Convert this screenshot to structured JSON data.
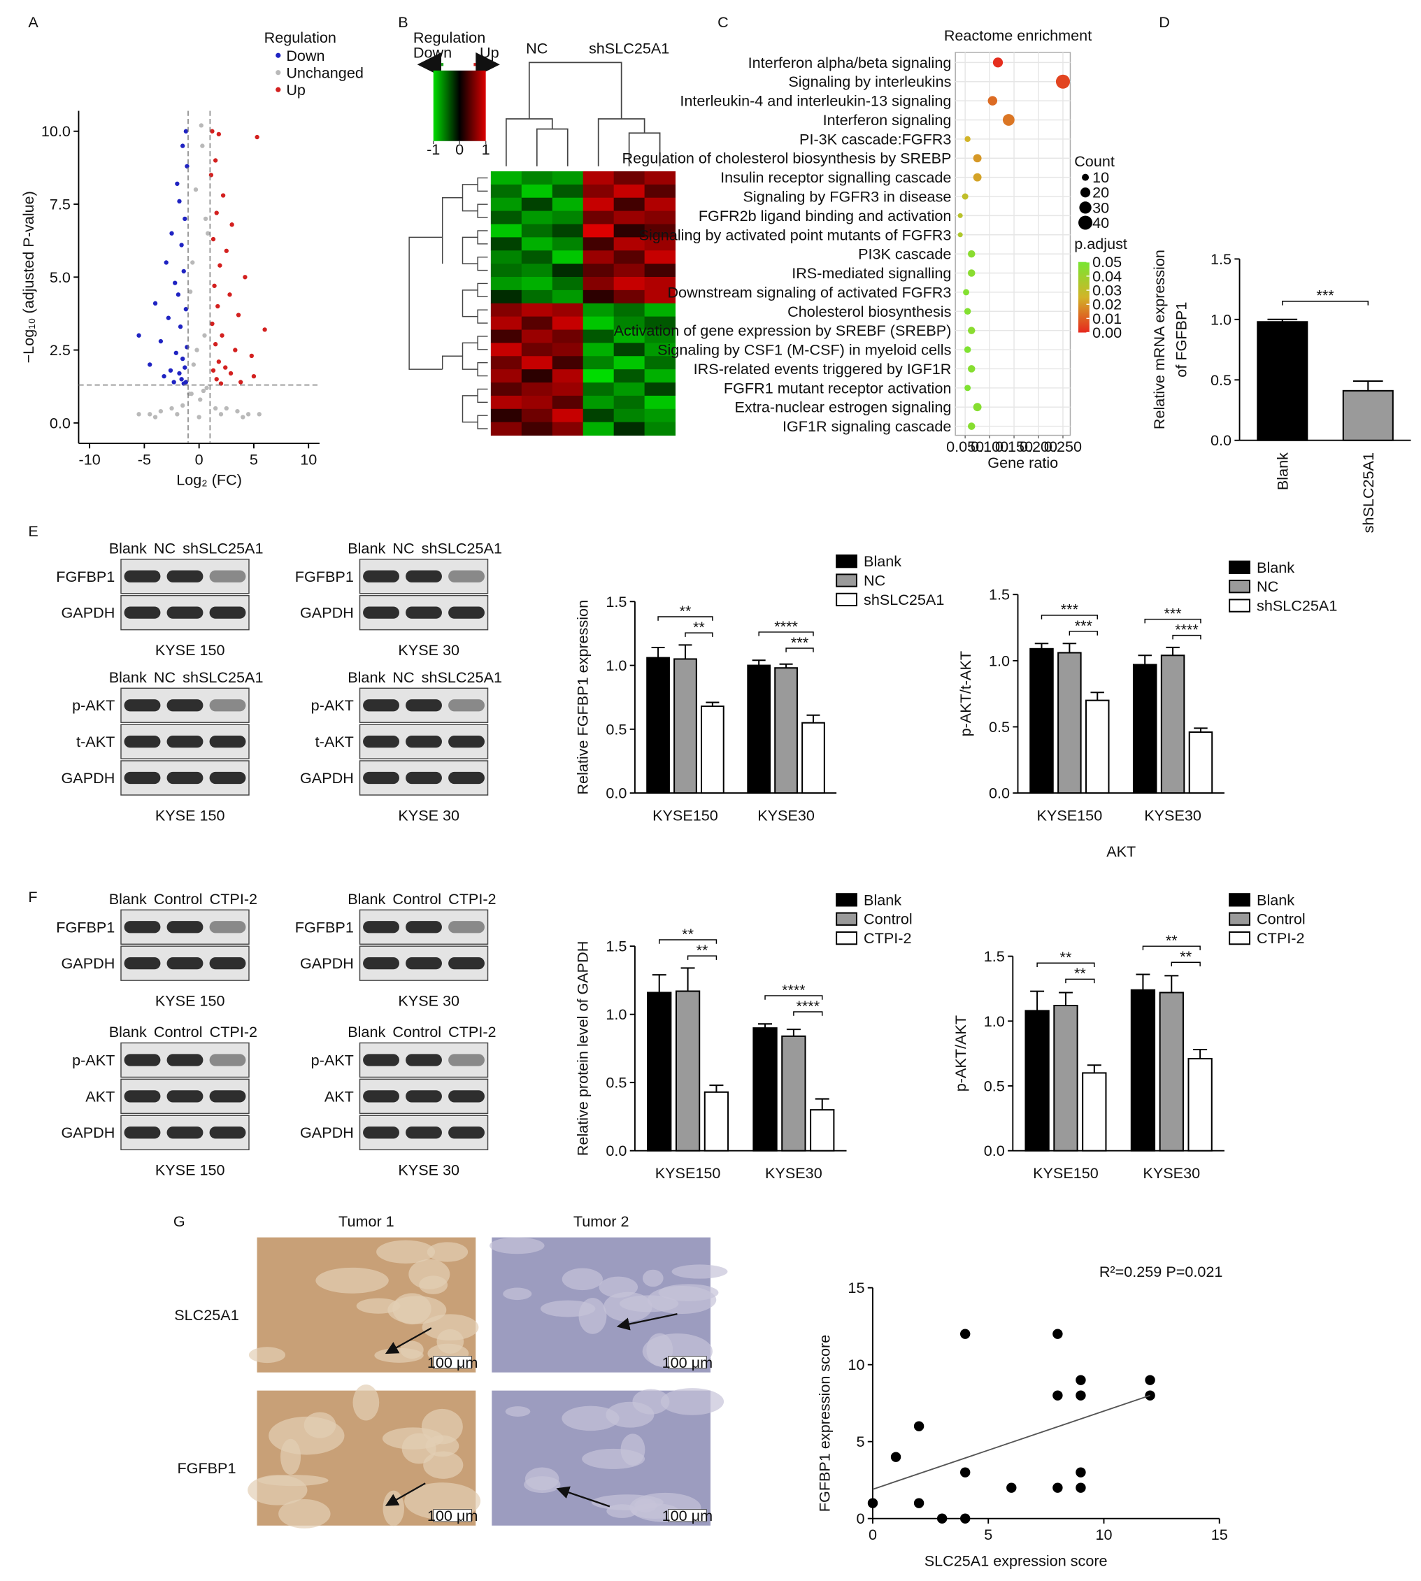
{
  "panel_labels": [
    "A",
    "B",
    "C",
    "D",
    "E",
    "F",
    "G"
  ],
  "chart_data": [
    {
      "type": "volcano",
      "x_label": "Log₂ (FC)",
      "y_label": "−Log₁₀ (adjusted P-value)",
      "legend_title": "Regulation",
      "series": [
        {
          "name": "Down",
          "color": "#1f23c2",
          "x": [
            -1.2,
            -1.5,
            -1.1,
            -2.0,
            -1.8,
            -1.3,
            -2.5,
            -1.6,
            -3.0,
            -1.4,
            -2.2,
            -1.9,
            -4.0,
            -1.2,
            -2.8,
            -1.7,
            -5.5,
            -3.5,
            -1.1,
            -2.1,
            -1.5,
            -4.5,
            -1.3,
            -2.6,
            -1.8,
            -3.2,
            -1.6,
            -1.2,
            -2.3,
            -1.4
          ],
          "y": [
            10.0,
            9.5,
            8.8,
            8.2,
            7.6,
            7.0,
            6.5,
            6.1,
            5.5,
            5.2,
            4.8,
            4.4,
            4.1,
            3.9,
            3.6,
            3.3,
            3.0,
            2.8,
            2.6,
            2.4,
            2.2,
            2.0,
            1.9,
            1.8,
            1.7,
            1.6,
            1.5,
            1.4,
            1.4,
            1.35
          ]
        },
        {
          "name": "Unchanged",
          "color": "#b9b9b9",
          "x": [
            -5.5,
            -4.5,
            -3.5,
            -2.5,
            -1.5,
            -0.5,
            0,
            0.5,
            1.5,
            2.5,
            3.5,
            4.5,
            5.5,
            -0.8,
            0.8,
            -0.3,
            0.3,
            -0.6,
            0.6,
            -0.9,
            0.2,
            -0.2,
            0.4,
            0.7,
            -0.7,
            -4,
            4,
            -2,
            2,
            0.1
          ],
          "y": [
            0.3,
            0.3,
            0.4,
            0.5,
            0.6,
            2.0,
            0.2,
            3.0,
            0.5,
            0.5,
            0.4,
            0.3,
            0.3,
            4.5,
            6.5,
            8.0,
            9.5,
            5.5,
            7.0,
            1.0,
            10.2,
            2.5,
            1.1,
            1.2,
            1.0,
            0.2,
            0.2,
            0.3,
            0.3,
            0.8
          ]
        },
        {
          "name": "Up",
          "color": "#d3201f",
          "x": [
            1.2,
            1.8,
            1.5,
            5.3,
            1.1,
            2.2,
            1.6,
            3.0,
            1.3,
            2.5,
            1.9,
            4.2,
            1.4,
            2.8,
            1.7,
            3.6,
            1.2,
            6.0,
            2.1,
            1.5,
            3.3,
            4.8,
            1.8,
            2.4,
            1.3,
            2.9,
            5.0,
            1.6,
            3.8,
            2.0
          ],
          "y": [
            10.0,
            9.9,
            9.0,
            9.8,
            8.5,
            7.8,
            7.2,
            6.8,
            6.3,
            5.9,
            5.4,
            5.0,
            4.7,
            4.4,
            4.0,
            3.7,
            3.4,
            3.2,
            3.0,
            2.7,
            2.5,
            2.3,
            2.1,
            1.9,
            1.8,
            1.7,
            1.6,
            1.5,
            1.4,
            1.35
          ]
        }
      ],
      "xlim": [
        -11,
        11
      ],
      "xticks": [
        -10,
        -5,
        0,
        5,
        10
      ],
      "ylim": [
        -0.7,
        10.7
      ],
      "yticks": [
        {
          "value": 0,
          "label": "0.0"
        },
        2.5,
        {
          "value": 5,
          "label": "5.0"
        },
        7.5,
        {
          "value": 10,
          "label": "10.0"
        }
      ],
      "cutoff_x": [
        -1,
        1
      ],
      "cutoff_y": 1.3
    },
    {
      "type": "heatmap",
      "group_labels": [
        "NC",
        "shSLC25A1"
      ],
      "legend_title": "Regulation",
      "legend_low": "Down",
      "legend_high": "Up",
      "color_lim": [
        -1,
        1
      ],
      "color_ticks": [
        -1,
        0,
        1
      ],
      "values": [
        [
          -0.8,
          -0.6,
          -0.7,
          0.8,
          0.5,
          0.7
        ],
        [
          -0.5,
          -0.9,
          -0.4,
          0.6,
          0.9,
          0.4
        ],
        [
          -0.7,
          -0.3,
          -0.8,
          0.9,
          0.3,
          0.8
        ],
        [
          -0.4,
          -0.7,
          -0.6,
          0.5,
          0.7,
          0.6
        ],
        [
          -0.9,
          -0.5,
          -0.3,
          1.0,
          0.2,
          0.4
        ],
        [
          -0.3,
          -0.8,
          -0.6,
          0.3,
          0.8,
          0.7
        ],
        [
          -0.6,
          -0.4,
          -0.9,
          0.7,
          0.4,
          0.9
        ],
        [
          -0.5,
          -0.6,
          -0.2,
          0.4,
          0.6,
          0.3
        ],
        [
          -0.7,
          -0.8,
          -0.5,
          0.6,
          0.9,
          0.8
        ],
        [
          -0.2,
          -0.5,
          -0.7,
          0.2,
          0.5,
          0.8
        ],
        [
          0.6,
          0.8,
          0.7,
          -0.7,
          -0.5,
          -0.8
        ],
        [
          0.8,
          0.4,
          0.9,
          -0.9,
          -0.6,
          -0.4
        ],
        [
          0.3,
          0.7,
          0.5,
          -0.4,
          -0.8,
          -0.6
        ],
        [
          0.9,
          0.5,
          0.6,
          -0.8,
          -0.3,
          -0.7
        ],
        [
          0.5,
          0.9,
          0.3,
          -0.6,
          -0.9,
          -0.5
        ],
        [
          0.7,
          0.2,
          0.8,
          -1.0,
          -0.4,
          -0.8
        ],
        [
          0.4,
          0.6,
          0.7,
          -0.5,
          -0.7,
          -0.3
        ],
        [
          0.8,
          0.7,
          0.4,
          -0.7,
          -0.5,
          -0.9
        ],
        [
          0.2,
          0.5,
          0.9,
          -0.3,
          -0.6,
          -0.7
        ],
        [
          0.6,
          0.3,
          0.6,
          -0.8,
          -0.2,
          -0.6
        ]
      ]
    },
    {
      "type": "dot",
      "title": "Reactome enrichment",
      "x_label": "Gene ratio",
      "terms": [
        "Interferon alpha/beta signaling",
        "Signaling by interleukins",
        "Interleukin-4 and interleukin-13 signaling",
        "Interferon signaling",
        "PI-3K cascade:FGFR3",
        "Regulation of cholesterol biosynthesis by SREBP",
        "Insulin receptor signalling cascade",
        "Signaling by FGFR3 in disease",
        "FGFR2b ligand binding and activation",
        "Signaling by activated point mutants of FGFR3",
        "PI3K cascade",
        "IRS-mediated signalling",
        "Downstream signaling of activated FGFR3",
        "Cholesterol biosynthesis",
        "Activation of gene expression by SREBF (SREBP)",
        "Signaling by CSF1 (M-CSF) in myeloid cells",
        "IRS-related events triggered by IGF1R",
        "FGFR1 mutant receptor activation",
        "Extra-nuclear estrogen signaling",
        "IGF1R signaling cascade"
      ],
      "gene_ratio": [
        0.117,
        0.25,
        0.106,
        0.139,
        0.055,
        0.075,
        0.075,
        0.05,
        0.04,
        0.04,
        0.063,
        0.063,
        0.052,
        0.055,
        0.063,
        0.055,
        0.063,
        0.055,
        0.075,
        0.063
      ],
      "counts": [
        20,
        40,
        18,
        28,
        7,
        14,
        14,
        8,
        5,
        5,
        11,
        11,
        8,
        9,
        11,
        9,
        11,
        8,
        14,
        11
      ],
      "p_adjust": [
        0.001,
        0.005,
        0.012,
        0.014,
        0.025,
        0.02,
        0.022,
        0.03,
        0.032,
        0.035,
        0.045,
        0.045,
        0.047,
        0.047,
        0.045,
        0.048,
        0.046,
        0.048,
        0.046,
        0.046
      ],
      "xlim": [
        0.03,
        0.265
      ],
      "xticks": [
        {
          "value": 0.05,
          "label": "0.050"
        },
        {
          "value": 0.1,
          "label": "0.100"
        },
        {
          "value": 0.15,
          "label": "0.150"
        },
        {
          "value": 0.2,
          "label": "0.200"
        },
        {
          "value": 0.25,
          "label": "0.250"
        }
      ],
      "size_title": "Count",
      "size_ticks": [
        10,
        20,
        30,
        40
      ],
      "color_title": "p.adjust",
      "color_lim": [
        0,
        0.05
      ],
      "color_ticks": [
        0.05,
        0.04,
        0.03,
        0.02,
        0.01,
        {
          "value": 0,
          "label": "0.00"
        }
      ]
    },
    {
      "type": "bar",
      "y_label": [
        "Relative mRNA expression",
        "of FGFBP1"
      ],
      "categories": [
        "Blank",
        "shSLC25A1"
      ],
      "values": [
        0.98,
        0.41
      ],
      "errors": [
        0.02,
        0.08
      ],
      "colors": [
        "#000000",
        "#9a9a9a"
      ],
      "significance": "***",
      "ylim": [
        0,
        1.5
      ],
      "yticks": [
        {
          "value": 0,
          "label": "0.0"
        },
        0.5,
        {
          "value": 1,
          "label": "1.0"
        },
        1.5
      ]
    },
    {
      "type": "bar",
      "y_label": "Relative FGFBP1 expression",
      "categories": [
        "KYSE150",
        "KYSE30"
      ],
      "series": [
        {
          "name": "Blank",
          "color": "#000000",
          "values": [
            1.06,
            1.0
          ],
          "errors": [
            0.08,
            0.04
          ]
        },
        {
          "name": "NC",
          "color": "#9a9a9a",
          "values": [
            1.05,
            0.98
          ],
          "errors": [
            0.11,
            0.03
          ]
        },
        {
          "name": "shSLC25A1",
          "color": "#ffffff",
          "values": [
            0.68,
            0.55
          ],
          "errors": [
            0.03,
            0.06
          ]
        }
      ],
      "significance": [
        [
          "**",
          "**"
        ],
        [
          "****",
          "***"
        ]
      ],
      "ylim": [
        0,
        1.5
      ],
      "yticks": [
        {
          "value": 0,
          "label": "0.0"
        },
        0.5,
        {
          "value": 1,
          "label": "1.0"
        },
        1.5
      ]
    },
    {
      "type": "bar",
      "y_label": "p-AKT/t-AKT",
      "x_label": "AKT",
      "categories": [
        "KYSE150",
        "KYSE30"
      ],
      "series": [
        {
          "name": "Blank",
          "color": "#000000",
          "values": [
            1.09,
            0.97
          ],
          "errors": [
            0.04,
            0.07
          ]
        },
        {
          "name": "NC",
          "color": "#9a9a9a",
          "values": [
            1.06,
            1.04
          ],
          "errors": [
            0.07,
            0.06
          ]
        },
        {
          "name": "shSLC25A1",
          "color": "#ffffff",
          "values": [
            0.7,
            0.46
          ],
          "errors": [
            0.06,
            0.03
          ]
        }
      ],
      "significance": [
        [
          "***",
          "***"
        ],
        [
          "***",
          "****"
        ]
      ],
      "ylim": [
        0,
        1.5
      ],
      "yticks": [
        {
          "value": 0,
          "label": "0.0"
        },
        0.5,
        {
          "value": 1,
          "label": "1.0"
        },
        1.5
      ]
    },
    {
      "type": "bar",
      "y_label": "Relative protein level of GAPDH",
      "categories": [
        "KYSE150",
        "KYSE30"
      ],
      "series": [
        {
          "name": "Blank",
          "color": "#000000",
          "values": [
            1.16,
            0.9
          ],
          "errors": [
            0.13,
            0.03
          ]
        },
        {
          "name": "Control",
          "color": "#9a9a9a",
          "values": [
            1.17,
            0.84
          ],
          "errors": [
            0.17,
            0.05
          ]
        },
        {
          "name": "CTPI-2",
          "color": "#ffffff",
          "values": [
            0.43,
            0.3
          ],
          "errors": [
            0.05,
            0.08
          ]
        }
      ],
      "significance": [
        [
          "**",
          "**"
        ],
        [
          "****",
          "****"
        ]
      ],
      "ylim": [
        0,
        1.5
      ],
      "yticks": [
        {
          "value": 0,
          "label": "0.0"
        },
        0.5,
        {
          "value": 1,
          "label": "1.0"
        },
        1.5
      ]
    },
    {
      "type": "bar",
      "y_label": "p-AKT/AKT",
      "categories": [
        "KYSE150",
        "KYSE30"
      ],
      "series": [
        {
          "name": "Blank",
          "color": "#000000",
          "values": [
            1.08,
            1.24
          ],
          "errors": [
            0.15,
            0.12
          ]
        },
        {
          "name": "Control",
          "color": "#9a9a9a",
          "values": [
            1.12,
            1.22
          ],
          "errors": [
            0.1,
            0.13
          ]
        },
        {
          "name": "CTPI-2",
          "color": "#ffffff",
          "values": [
            0.6,
            0.71
          ],
          "errors": [
            0.06,
            0.07
          ]
        }
      ],
      "significance": [
        [
          "**",
          "**"
        ],
        [
          "**",
          "**"
        ]
      ],
      "ylim": [
        0,
        1.5
      ],
      "yticks": [
        {
          "value": 0,
          "label": "0.0"
        },
        0.5,
        {
          "value": 1,
          "label": "1.0"
        },
        1.5
      ]
    },
    {
      "type": "scatter",
      "annotation": "R²=0.259 P=0.021",
      "x_label": "SLC25A1 expression score",
      "y_label": "FGFBP1 expression score",
      "color": "#000000",
      "x": [
        0,
        1,
        2,
        2,
        3,
        4,
        4,
        4,
        6,
        8,
        8,
        8,
        9,
        9,
        9,
        9,
        12,
        12
      ],
      "y": [
        1,
        4,
        6,
        1,
        0,
        12,
        3,
        0,
        2,
        12,
        8,
        2,
        9,
        8,
        3,
        2,
        9,
        8
      ],
      "fit": {
        "x": [
          0,
          12
        ],
        "y": [
          1.9,
          8
        ]
      },
      "xlim": [
        0,
        15
      ],
      "xticks": [
        0,
        5,
        10,
        15
      ],
      "ylim": [
        0,
        15
      ],
      "yticks": [
        0,
        5,
        10,
        15
      ]
    }
  ],
  "blots": [
    {
      "lanes": [
        "Blank",
        "NC",
        "shSLC25A1"
      ],
      "rows": [
        "FGFBP1",
        "GAPDH"
      ],
      "cell_line": "KYSE 150"
    },
    {
      "lanes": [
        "Blank",
        "NC",
        "shSLC25A1"
      ],
      "rows": [
        "FGFBP1",
        "GAPDH"
      ],
      "cell_line": "KYSE 30"
    },
    {
      "lanes": [
        "Blank",
        "NC",
        "shSLC25A1"
      ],
      "rows": [
        "p-AKT",
        "t-AKT",
        "GAPDH"
      ],
      "cell_line": "KYSE 150"
    },
    {
      "lanes": [
        "Blank",
        "NC",
        "shSLC25A1"
      ],
      "rows": [
        "p-AKT",
        "t-AKT",
        "GAPDH"
      ],
      "cell_line": "KYSE 30"
    },
    {
      "lanes": [
        "Blank",
        "Control",
        "CTPI-2"
      ],
      "rows": [
        "FGFBP1",
        "GAPDH"
      ],
      "cell_line": "KYSE 150"
    },
    {
      "lanes": [
        "Blank",
        "Control",
        "CTPI-2"
      ],
      "rows": [
        "FGFBP1",
        "GAPDH"
      ],
      "cell_line": "KYSE 30"
    },
    {
      "lanes": [
        "Blank",
        "Control",
        "CTPI-2"
      ],
      "rows": [
        "p-AKT",
        "AKT",
        "GAPDH"
      ],
      "cell_line": "KYSE 150"
    },
    {
      "lanes": [
        "Blank",
        "Control",
        "CTPI-2"
      ],
      "rows": [
        "p-AKT",
        "AKT",
        "GAPDH"
      ],
      "cell_line": "KYSE 30"
    }
  ],
  "ihc": {
    "columns": [
      "Tumor 1",
      "Tumor 2"
    ],
    "rows": [
      "SLC25A1",
      "FGFBP1"
    ],
    "scale_bar": "100 μm"
  }
}
